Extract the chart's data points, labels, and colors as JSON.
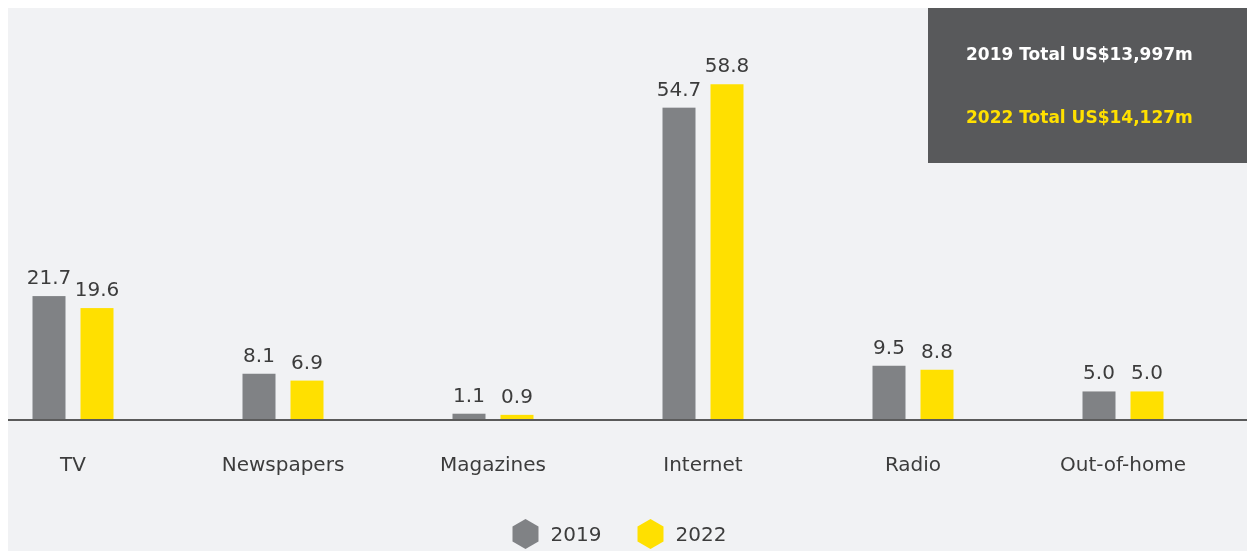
{
  "chart_data": {
    "type": "bar",
    "categories": [
      "TV",
      "Newspapers",
      "Magazines",
      "Internet",
      "Radio",
      "Out-of-home"
    ],
    "series": [
      {
        "name": "2019",
        "color": "#808285",
        "values": [
          21.7,
          8.1,
          1.1,
          54.7,
          9.5,
          5.0
        ],
        "value_labels": [
          "21.7",
          "8.1",
          "1.1",
          "54.7",
          "9.5",
          "5.0"
        ]
      },
      {
        "name": "2022",
        "color": "#ffe000",
        "values": [
          19.6,
          6.9,
          0.9,
          58.8,
          8.8,
          5.0
        ],
        "value_labels": [
          "19.6",
          "6.9",
          "0.9",
          "58.8",
          "8.8",
          "5.0"
        ]
      }
    ],
    "legend": "bottom",
    "annotations": [
      "2019 Total US$13,997m",
      "2022 Total US$14,127m"
    ]
  }
}
